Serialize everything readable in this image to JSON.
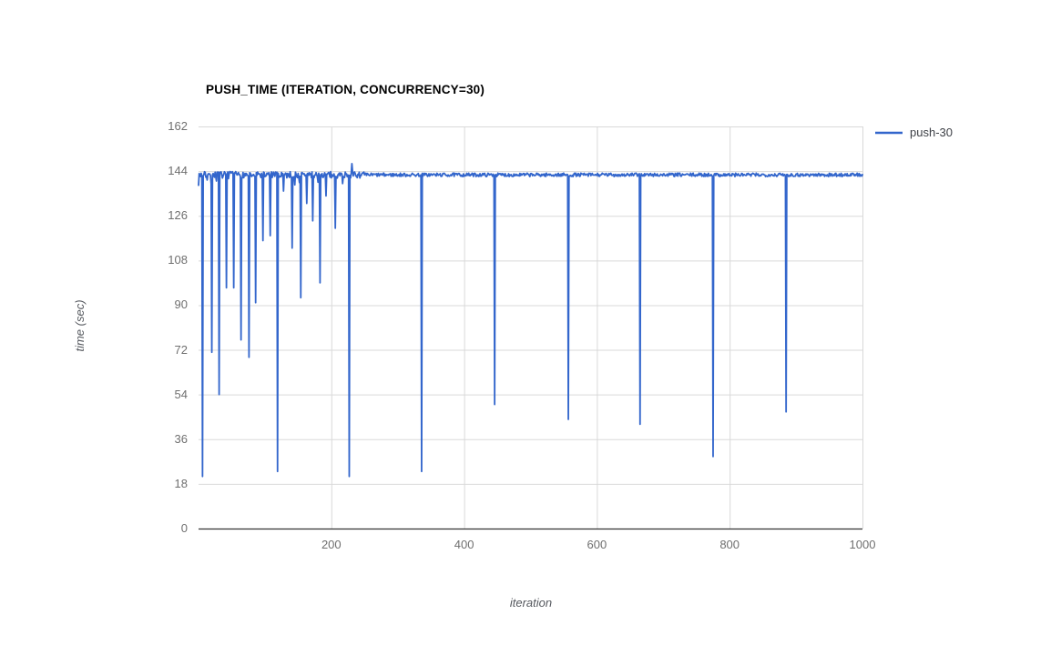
{
  "chart": {
    "title": "PUSH_TIME (ITERATION, CONCURRENCY=30)",
    "x_axis_label": "iteration",
    "y_axis_label": "time (sec)",
    "legend": {
      "label": "push-30",
      "swatch_color": "#3366cc"
    }
  },
  "chart_data": {
    "type": "line",
    "title": "PUSH_TIME (ITERATION, CONCURRENCY=30)",
    "xlabel": "iteration",
    "ylabel": "time (sec)",
    "xlim": [
      0,
      1000
    ],
    "ylim": [
      0,
      162
    ],
    "x_ticks": [
      200,
      400,
      600,
      800,
      1000
    ],
    "y_ticks": [
      0,
      18,
      36,
      54,
      72,
      90,
      108,
      126,
      144,
      162
    ],
    "grid": true,
    "legend_position": "right",
    "colors": {
      "series": "#3366cc",
      "gridline": "#d9d9d9",
      "axis_line": "#333333",
      "tick_text": "#6f6f6f"
    },
    "series": [
      {
        "name": "push-30",
        "color": "#3366cc",
        "description": "steady baseline ~142.5 sec with sharp downward spikes; dense dips during first ~230 iterations, then periodic deep dips roughly every 110 iterations",
        "baseline": 142.5,
        "noise": {
          "early_region_end": 250,
          "early_amplitude": 1.3,
          "late_amplitude": 0.7
        },
        "dips": [
          [
            6,
            21
          ],
          [
            20,
            71
          ],
          [
            31,
            54
          ],
          [
            42,
            97
          ],
          [
            53,
            97
          ],
          [
            64,
            76
          ],
          [
            76,
            69
          ],
          [
            86,
            91
          ],
          [
            97,
            116
          ],
          [
            108,
            118
          ],
          [
            119,
            23
          ],
          [
            128,
            136
          ],
          [
            141,
            113
          ],
          [
            154,
            93
          ],
          [
            163,
            131
          ],
          [
            172,
            124
          ],
          [
            183,
            99
          ],
          [
            192,
            134
          ],
          [
            206,
            121
          ],
          [
            217,
            139
          ],
          [
            227,
            21
          ],
          [
            336,
            23
          ],
          [
            446,
            50
          ],
          [
            557,
            44
          ],
          [
            665,
            42
          ],
          [
            775,
            29
          ],
          [
            885,
            47
          ]
        ],
        "spikes_up": [
          [
            231,
            147
          ]
        ]
      }
    ]
  }
}
